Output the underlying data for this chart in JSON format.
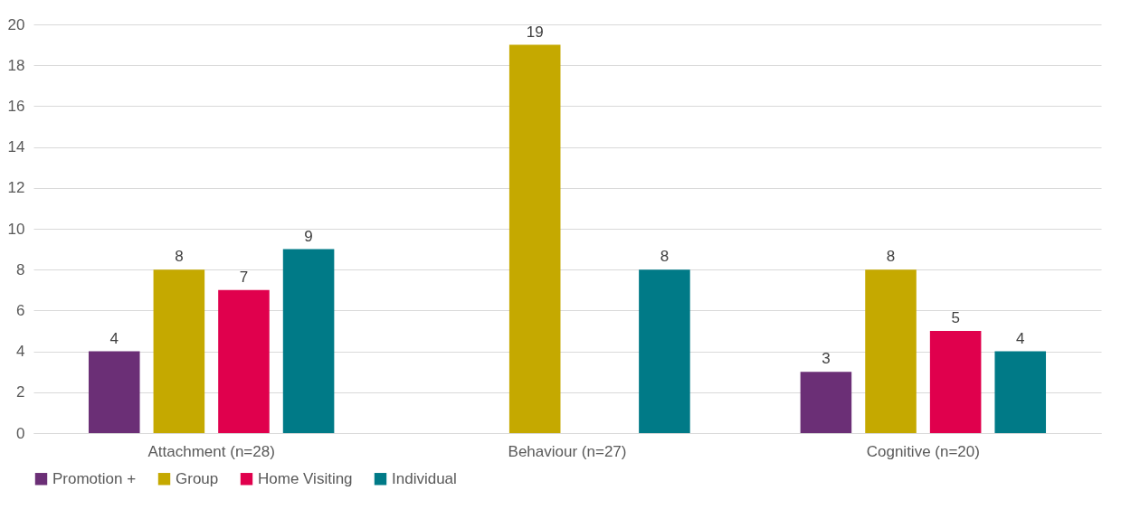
{
  "chart_data": {
    "type": "bar",
    "categories": [
      "Attachment (n=28)",
      "Behaviour (n=27)",
      "Cognitive (n=20)"
    ],
    "series": [
      {
        "name": "Promotion +",
        "color": "#6b2f76",
        "values": [
          4,
          null,
          3
        ]
      },
      {
        "name": "Group",
        "color": "#c5a900",
        "values": [
          8,
          19,
          8
        ]
      },
      {
        "name": "Home Visiting",
        "color": "#e0004d",
        "values": [
          7,
          null,
          5
        ]
      },
      {
        "name": "Individual",
        "color": "#007a87",
        "values": [
          9,
          8,
          4
        ]
      }
    ],
    "ylim": [
      0,
      20
    ],
    "yticks": [
      0,
      2,
      4,
      6,
      8,
      10,
      12,
      14,
      16,
      18,
      20
    ],
    "grid": "y",
    "legend": "bottom",
    "data_labels": true
  }
}
